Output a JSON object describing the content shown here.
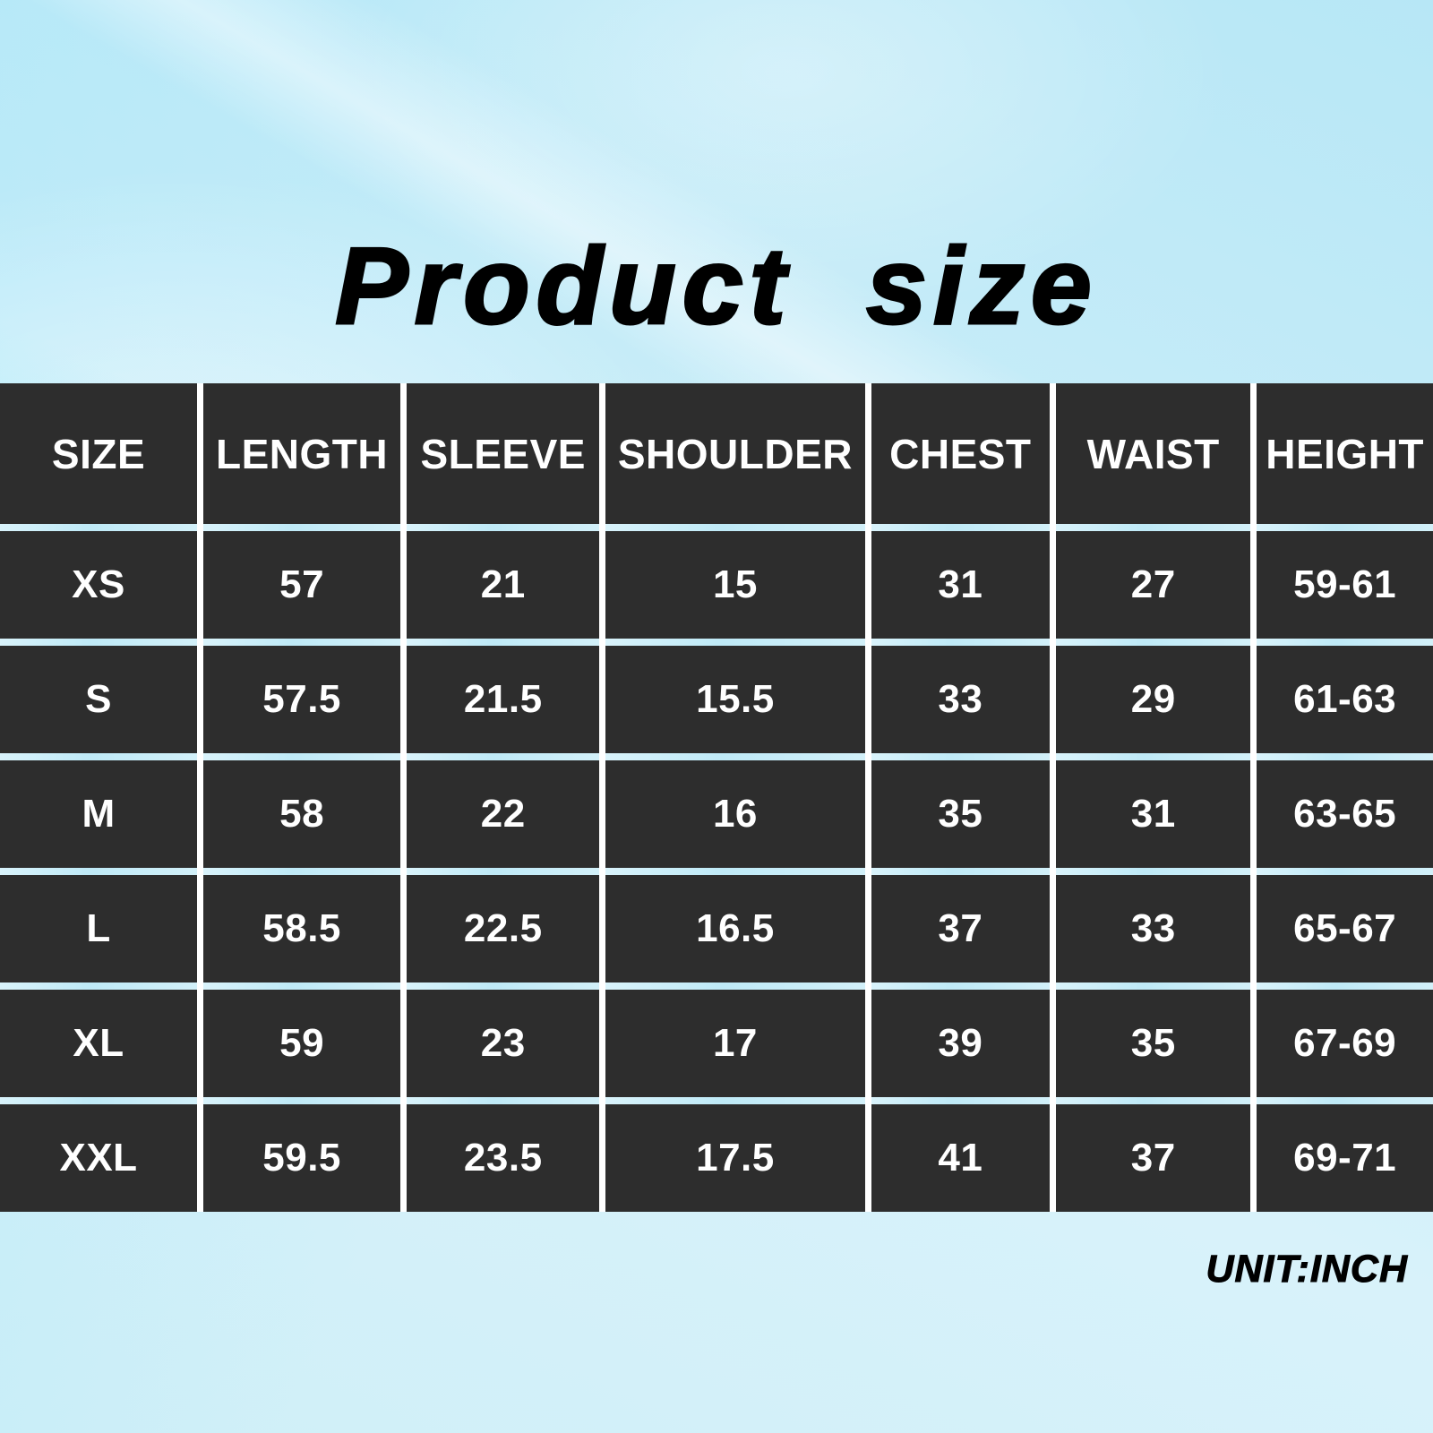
{
  "page": {
    "title": "Product size",
    "unit_label": "UNIT:INCH"
  },
  "table": {
    "columns": [
      "SIZE",
      "LENGTH",
      "SLEEVE",
      "SHOULDER",
      "CHEST",
      "WAIST",
      "HEIGHT"
    ],
    "rows": [
      {
        "size": "XS",
        "values": [
          "57",
          "21",
          "15",
          "31",
          "27",
          "59-61"
        ]
      },
      {
        "size": "S",
        "values": [
          "57.5",
          "21.5",
          "15.5",
          "33",
          "29",
          "61-63"
        ]
      },
      {
        "size": "M",
        "values": [
          "58",
          "22",
          "16",
          "35",
          "31",
          "63-65"
        ]
      },
      {
        "size": "L",
        "values": [
          "58.5",
          "22.5",
          "16.5",
          "37",
          "33",
          "65-67"
        ]
      },
      {
        "size": "XL",
        "values": [
          "59",
          "23",
          "17",
          "39",
          "35",
          "67-69"
        ]
      },
      {
        "size": "XXL",
        "values": [
          "59.5",
          "23.5",
          "17.5",
          "41",
          "37",
          "69-71"
        ]
      }
    ]
  },
  "chart_data": {
    "type": "table",
    "title": "Product size",
    "unit": "INCH",
    "columns": [
      "SIZE",
      "LENGTH",
      "SLEEVE",
      "SHOULDER",
      "CHEST",
      "WAIST",
      "HEIGHT"
    ],
    "rows": [
      [
        "XS",
        57,
        21,
        15,
        31,
        27,
        "59-61"
      ],
      [
        "S",
        57.5,
        21.5,
        15.5,
        33,
        29,
        "61-63"
      ],
      [
        "M",
        58,
        22,
        16,
        35,
        31,
        "63-65"
      ],
      [
        "L",
        58.5,
        22.5,
        16.5,
        37,
        33,
        "65-67"
      ],
      [
        "XL",
        59,
        23,
        17,
        39,
        35,
        "67-69"
      ],
      [
        "XXL",
        59.5,
        23.5,
        17.5,
        41,
        37,
        "69-71"
      ]
    ]
  },
  "colors": {
    "cell_background": "#2d2d2d",
    "cell_text": "#ffffff",
    "column_separator": "#ffffff",
    "row_separator": "#c5ebf7",
    "page_background": "#cdeef8",
    "title_text": "#000000"
  }
}
